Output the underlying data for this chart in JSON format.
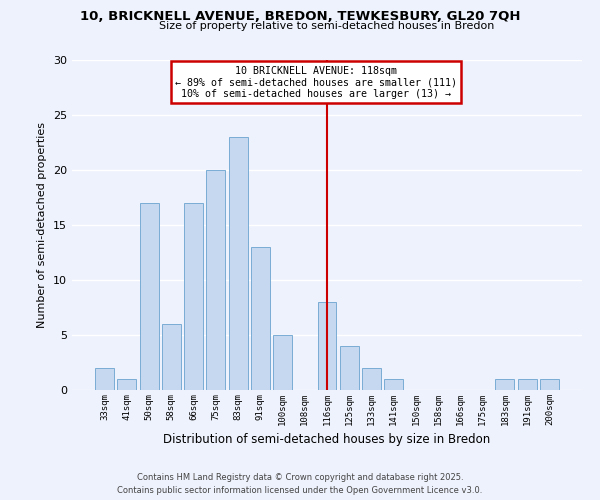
{
  "title": "10, BRICKNELL AVENUE, BREDON, TEWKESBURY, GL20 7QH",
  "subtitle": "Size of property relative to semi-detached houses in Bredon",
  "xlabel": "Distribution of semi-detached houses by size in Bredon",
  "ylabel": "Number of semi-detached properties",
  "categories": [
    "33sqm",
    "41sqm",
    "50sqm",
    "58sqm",
    "66sqm",
    "75sqm",
    "83sqm",
    "91sqm",
    "100sqm",
    "108sqm",
    "116sqm",
    "125sqm",
    "133sqm",
    "141sqm",
    "150sqm",
    "158sqm",
    "166sqm",
    "175sqm",
    "183sqm",
    "191sqm",
    "200sqm"
  ],
  "values": [
    2,
    1,
    17,
    6,
    17,
    20,
    23,
    13,
    5,
    0,
    8,
    4,
    2,
    1,
    0,
    0,
    0,
    0,
    1,
    1,
    1
  ],
  "bar_color": "#c5d8f0",
  "bar_edge_color": "#7aadd4",
  "highlight_index": 10,
  "highlight_line_color": "#cc0000",
  "ylim": [
    0,
    30
  ],
  "yticks": [
    0,
    5,
    10,
    15,
    20,
    25,
    30
  ],
  "annotation_title": "10 BRICKNELL AVENUE: 118sqm",
  "annotation_line1": "← 89% of semi-detached houses are smaller (111)",
  "annotation_line2": "10% of semi-detached houses are larger (13) →",
  "annotation_box_color": "#ffffff",
  "annotation_box_edge": "#cc0000",
  "footer_line1": "Contains HM Land Registry data © Crown copyright and database right 2025.",
  "footer_line2": "Contains public sector information licensed under the Open Government Licence v3.0.",
  "bg_color": "#eef2fc",
  "grid_color": "#ffffff",
  "title_fontsize": 9.5,
  "subtitle_fontsize": 8.0,
  "ylabel_fontsize": 8.0,
  "xlabel_fontsize": 8.5
}
